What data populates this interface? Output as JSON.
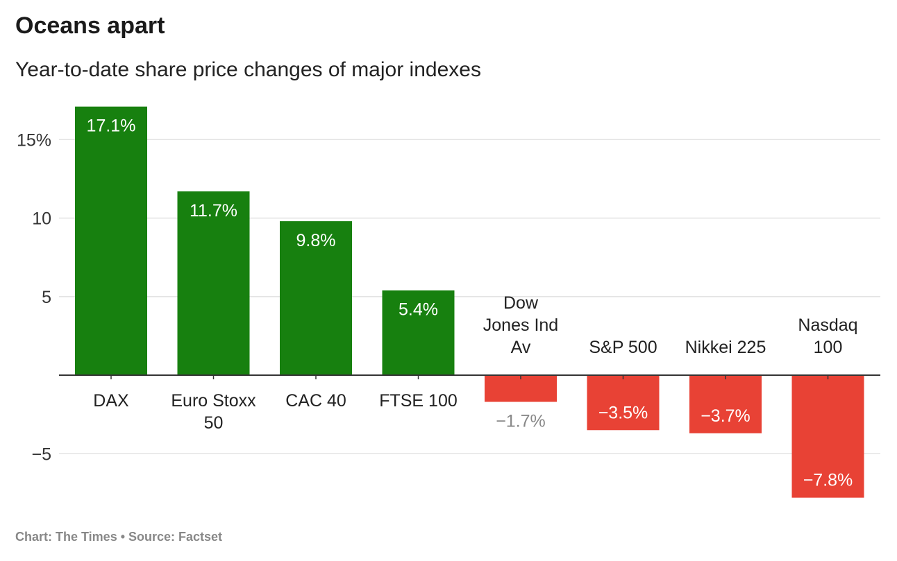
{
  "header": {
    "title": "Oceans apart",
    "subtitle": "Year-to-date share price changes of major indexes"
  },
  "footer": {
    "credit": "Chart: The Times • Source: Factset"
  },
  "colors": {
    "positive": "#17800f",
    "negative": "#e84235",
    "grid": "#e3e3e3",
    "axis": "#333333",
    "muted_label": "#888888"
  },
  "chart_data": {
    "type": "bar",
    "title": "Oceans apart",
    "subtitle": "Year-to-date share price changes of major indexes",
    "categories": [
      [
        "DAX"
      ],
      [
        "Euro Stoxx",
        "50"
      ],
      [
        "CAC 40"
      ],
      [
        "FTSE 100"
      ],
      [
        "Dow",
        "Jones Ind",
        "Av"
      ],
      [
        "S&P 500"
      ],
      [
        "Nikkei 225"
      ],
      [
        "Nasdaq",
        "100"
      ]
    ],
    "values": [
      17.1,
      11.7,
      9.8,
      5.4,
      -1.7,
      -3.5,
      -3.7,
      -7.8
    ],
    "value_labels": [
      "17.1%",
      "11.7%",
      "9.8%",
      "5.4%",
      "−1.7%",
      "−3.5%",
      "−3.7%",
      "−7.8%"
    ],
    "yticks": [
      15,
      10,
      5,
      -5
    ],
    "ytick_labels": [
      "15%",
      "10",
      "5",
      "−5"
    ],
    "ylim": [
      -8,
      17.1
    ],
    "grid": true,
    "legend": "none"
  }
}
